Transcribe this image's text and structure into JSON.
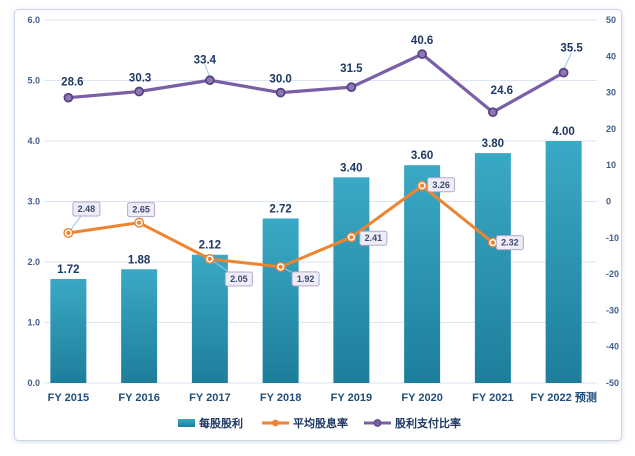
{
  "chart_data": {
    "type": "combo",
    "title": "",
    "categories": [
      "FY 2015",
      "FY 2016",
      "FY 2017",
      "FY 2018",
      "FY 2019",
      "FY 2020",
      "FY 2021",
      "FY 2022 预测"
    ],
    "series": [
      {
        "name": "每股股利",
        "chart_type": "bar",
        "axis": "left",
        "values": [
          1.72,
          1.88,
          2.12,
          2.72,
          3.4,
          3.6,
          3.8,
          4.0
        ],
        "labels": [
          "1.72",
          "1.88",
          "2.12",
          "2.72",
          "3.40",
          "3.60",
          "3.80",
          "4.00"
        ]
      },
      {
        "name": "平均股息率",
        "chart_type": "line",
        "axis": "left",
        "values": [
          2.48,
          2.65,
          2.05,
          1.92,
          2.41,
          3.26,
          2.32,
          null
        ],
        "labels": [
          "2.48",
          "2.65",
          "2.05",
          "1.92",
          "2.41",
          "3.26",
          "2.32"
        ],
        "label_style": "boxed",
        "label_offsets": [
          [
            18,
            -24
          ],
          [
            2,
            -13
          ],
          [
            29,
            20
          ],
          [
            25,
            12
          ],
          [
            22,
            1
          ],
          [
            19,
            -1
          ],
          [
            17,
            0
          ]
        ],
        "label_leaders": [
          true,
          false,
          true,
          true,
          false,
          false,
          false
        ]
      },
      {
        "name": "股利支付比率",
        "chart_type": "line",
        "axis": "right",
        "values": [
          28.6,
          30.3,
          33.4,
          30.0,
          31.5,
          40.6,
          24.6,
          35.5
        ],
        "labels": [
          "28.6",
          "30.3",
          "33.4",
          "30.0",
          "31.5",
          "40.6",
          "24.6",
          "35.5"
        ],
        "label_style": "plain",
        "label_offsets": [
          [
            4,
            -16
          ],
          [
            1,
            -14
          ],
          [
            -5,
            -21
          ],
          [
            0,
            -14
          ],
          [
            0,
            -19
          ],
          [
            0,
            -14
          ],
          [
            9,
            -22
          ],
          [
            8,
            -25
          ]
        ],
        "label_leaders": [
          false,
          false,
          true,
          false,
          false,
          false,
          false,
          true
        ]
      }
    ],
    "left_axis": {
      "min": 0,
      "max": 6,
      "step": 1,
      "tick_labels": [
        "0.0",
        "1.0",
        "2.0",
        "3.0",
        "4.0",
        "5.0",
        "6.0"
      ]
    },
    "right_axis": {
      "min": -50,
      "max": 50,
      "step": 10,
      "tick_labels": [
        "-50",
        "-40",
        "-30",
        "-20",
        "-10",
        "0",
        "10",
        "20",
        "30",
        "40",
        "50"
      ]
    },
    "grid": "horizontal",
    "legend_position": "bottom",
    "colors": {
      "bar_top": "#3aa9c5",
      "bar_bottom": "#1d7e9b",
      "yield_line": "#ee8330",
      "payout_line": "#7a5fa7",
      "payout_marker_fill": "#8f77b6",
      "payout_marker_edge": "#55407f",
      "axis_text": "#3f5d8c",
      "category_text": "#1f4e79",
      "data_label": "#1f3864",
      "label_box_fill": "#eeecf6",
      "label_box_border": "#b5a8ce",
      "label_box_text": "#3c4a70",
      "gridline": "#dce6f2",
      "leader": "#a5c4e2",
      "frame_border": "#ccd7e9"
    }
  }
}
